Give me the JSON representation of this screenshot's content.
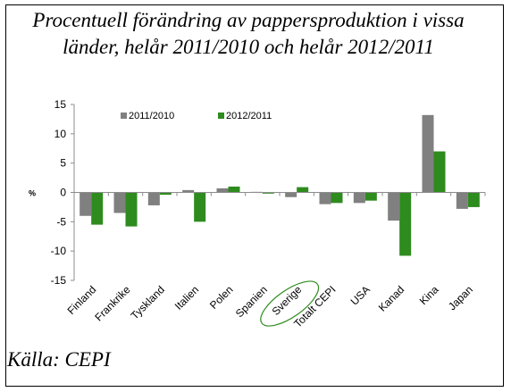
{
  "chart_data": {
    "type": "bar",
    "title": "Procentuell förändring av pappersproduktion i vissa länder, helår 2011/2010 och helår 2012/2011",
    "source": "Källa: CEPI",
    "ylabel": "%",
    "xlabel": "",
    "ylim": [
      -15,
      15
    ],
    "yticks": [
      15,
      10,
      5,
      0,
      -5,
      -10,
      -15
    ],
    "grid": false,
    "legend_position": "top-left",
    "categories": [
      "Finland",
      "Frankrike",
      "Tyskland",
      "Italien",
      "Polen",
      "Spanien",
      "Sverige",
      "Totalt CEPI",
      "USA",
      "Kanad",
      "Kina",
      "Japan"
    ],
    "highlighted_category": "Sverige",
    "series": [
      {
        "name": "2011/2010",
        "color": "#808080",
        "values": [
          -4.0,
          -3.5,
          -2.2,
          0.4,
          0.7,
          0.1,
          -0.8,
          -2.0,
          -1.8,
          -4.8,
          13.2,
          -2.8
        ]
      },
      {
        "name": "2012/2011",
        "color": "#2e8b1e",
        "values": [
          -5.5,
          -5.8,
          -0.4,
          -5.0,
          1.0,
          -0.2,
          0.9,
          -1.8,
          -1.4,
          -10.8,
          7.0,
          -2.5
        ]
      }
    ]
  }
}
